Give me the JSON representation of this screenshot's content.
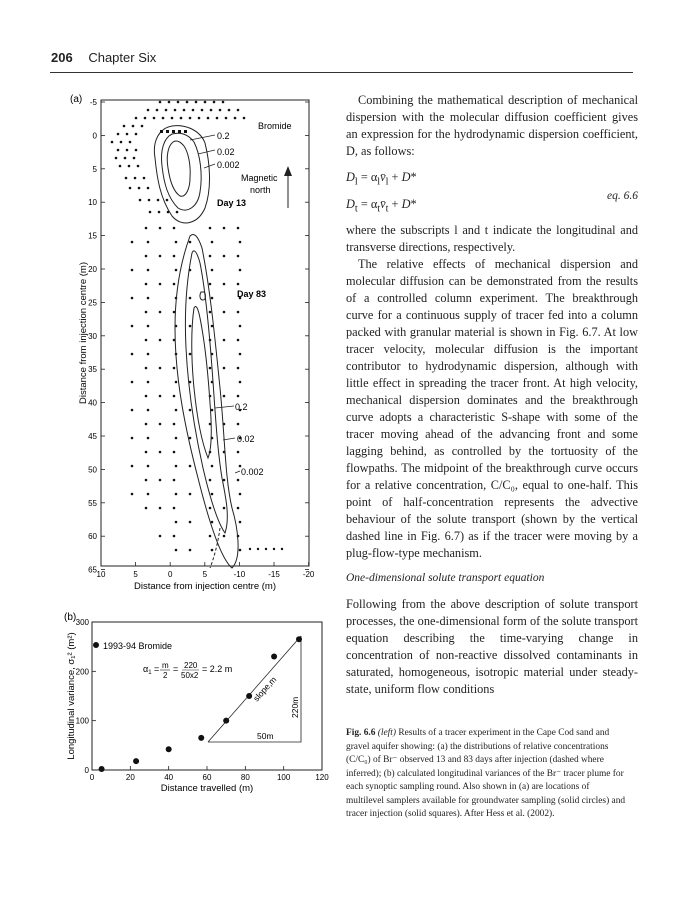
{
  "header": {
    "page_number": "206",
    "chapter": "Chapter Six"
  },
  "figure_a": {
    "panel_label": "(a)",
    "y_axis_label": "Distance from injection centre (m)",
    "x_axis_label": "Distance from injection centre (m)",
    "y_ticks": [
      "-5",
      "0",
      "5",
      "10",
      "15",
      "20",
      "25",
      "30",
      "35",
      "40",
      "45",
      "50",
      "55",
      "60",
      "65"
    ],
    "x_ticks": [
      "10",
      "5",
      "0",
      "5",
      "-10",
      "-15",
      "-20"
    ],
    "annotations": {
      "bromide": "Bromide",
      "c02_top": "0.2",
      "c002_top": "0.02",
      "c0002_top": "0.002",
      "magnetic_north": "Magnetic\nnorth",
      "day13": "Day 13",
      "day83": "Day 83",
      "c02_bottom": "0.2",
      "c002_bottom": "0.02",
      "c0002_bottom": "0.002"
    }
  },
  "figure_b": {
    "panel_label": "(b)",
    "y_axis_label": "Longitudinal variance, σ₁² (m²)",
    "x_axis_label": "Distance travelled (m)",
    "legend": "1993-94 Bromide",
    "formula": "α₁ = m/2 = 220/(50x2) = 2.2 m",
    "slope_label": "slope,m",
    "triangle_base": "50m",
    "triangle_height": "220m",
    "chart_data": {
      "type": "scatter",
      "x": [
        5,
        23,
        40,
        57,
        70,
        82,
        95,
        108
      ],
      "y": [
        2,
        18,
        42,
        65,
        100,
        150,
        230,
        265
      ],
      "xlim": [
        0,
        120
      ],
      "ylim": [
        0,
        300
      ],
      "x_ticks": [
        "0",
        "20",
        "40",
        "60",
        "80",
        "100",
        "120"
      ],
      "y_ticks": [
        "0",
        "100",
        "200",
        "300"
      ]
    }
  },
  "text": {
    "p1": "Combining the mathematical description of mechanical dispersion with the molecular diffusion coefficient gives an expression for the hydrodynamic dispersion coefficient, D, as follows:",
    "eq_label": "eq. 6.6",
    "p2": "where the subscripts l and t indicate the longitudinal and transverse directions, respectively.",
    "p3": "The relative effects of mechanical dispersion and molecular diffusion can be demonstrated from the results of a controlled column experiment. The breakthrough curve for a continuous supply of tracer fed into a column packed with granular material is shown in Fig. 6.7. At low tracer velocity, molecular diffusion is the important contributor to hydrodynamic dispersion, although with little effect in spreading the tracer front. At high velocity, mechanical dispersion dominates and the breakthrough curve adopts a characteristic S-shape with some of the tracer moving ahead of the advancing front and some lagging behind, as controlled by the tortuosity of the flowpaths. The midpoint of the breakthrough curve occurs for a relative concentration, C/C₀, equal to one-half. This point of half-concentration represents the advective behaviour of the solute transport (shown by the vertical dashed line in Fig. 6.7) as if the tracer were moving by a plug-flow-type mechanism.",
    "subheading": "One-dimensional solute transport equation",
    "p4": "Following from the above description of solute transport processes, the one-dimensional form of the solute transport equation describing the time-varying change in concentration of non-reactive dissolved contaminants in saturated, homogeneous, isotropic material under steady-state, uniform flow conditions",
    "caption_label": "Fig. 6.6",
    "caption_left": "(left)",
    "caption": "Results of a tracer experiment in the Cape Cod sand and gravel aquifer showing: (a) the distributions of relative concentrations (C/C₀) of Br⁻ observed 13 and 83 days after injection (dashed where inferred); (b) calculated longitudinal variances of the Br⁻ tracer plume for each synoptic sampling round. Also shown in (a) are locations of multilevel samplers available for groundwater sampling (solid circles) and tracer injection (solid squares). After Hess et al. (2002)."
  }
}
